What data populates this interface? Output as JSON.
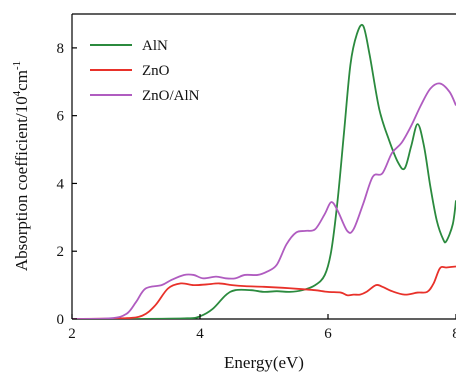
{
  "chart_data": {
    "type": "line",
    "title": "",
    "xlabel": "Energy(eV)",
    "ylabel_parts": [
      "Absorption coefficient/10",
      "4",
      "cm",
      "-1"
    ],
    "xlim": [
      2,
      8
    ],
    "ylim": [
      0,
      9
    ],
    "xticks": [
      2,
      4,
      6,
      8
    ],
    "yticks": [
      0,
      2,
      4,
      6,
      8
    ],
    "grid": false,
    "legend_position": "top-left",
    "series": [
      {
        "name": "AlN",
        "color": "#2b8a3e",
        "points": [
          [
            2.0,
            0
          ],
          [
            3.0,
            0
          ],
          [
            3.8,
            0.02
          ],
          [
            4.0,
            0.08
          ],
          [
            4.2,
            0.3
          ],
          [
            4.4,
            0.7
          ],
          [
            4.55,
            0.85
          ],
          [
            4.8,
            0.85
          ],
          [
            5.0,
            0.8
          ],
          [
            5.2,
            0.82
          ],
          [
            5.4,
            0.8
          ],
          [
            5.6,
            0.85
          ],
          [
            5.8,
            1.0
          ],
          [
            5.95,
            1.3
          ],
          [
            6.05,
            2.0
          ],
          [
            6.15,
            3.5
          ],
          [
            6.25,
            5.5
          ],
          [
            6.35,
            7.5
          ],
          [
            6.45,
            8.4
          ],
          [
            6.55,
            8.65
          ],
          [
            6.65,
            7.8
          ],
          [
            6.8,
            6.2
          ],
          [
            6.95,
            5.3
          ],
          [
            7.1,
            4.6
          ],
          [
            7.2,
            4.45
          ],
          [
            7.3,
            5.1
          ],
          [
            7.4,
            5.75
          ],
          [
            7.5,
            5.1
          ],
          [
            7.6,
            3.9
          ],
          [
            7.7,
            2.9
          ],
          [
            7.8,
            2.35
          ],
          [
            7.85,
            2.3
          ],
          [
            7.95,
            2.8
          ],
          [
            8.0,
            3.5
          ]
        ]
      },
      {
        "name": "ZnO",
        "color": "#e8312a",
        "points": [
          [
            2.0,
            0
          ],
          [
            2.8,
            0.02
          ],
          [
            3.1,
            0.1
          ],
          [
            3.3,
            0.4
          ],
          [
            3.5,
            0.9
          ],
          [
            3.7,
            1.05
          ],
          [
            3.9,
            1.0
          ],
          [
            4.1,
            1.02
          ],
          [
            4.3,
            1.05
          ],
          [
            4.5,
            1.0
          ],
          [
            4.7,
            0.97
          ],
          [
            5.0,
            0.95
          ],
          [
            5.3,
            0.92
          ],
          [
            5.6,
            0.88
          ],
          [
            5.8,
            0.85
          ],
          [
            6.0,
            0.8
          ],
          [
            6.2,
            0.78
          ],
          [
            6.3,
            0.7
          ],
          [
            6.4,
            0.72
          ],
          [
            6.5,
            0.72
          ],
          [
            6.6,
            0.8
          ],
          [
            6.75,
            1.0
          ],
          [
            6.85,
            0.95
          ],
          [
            7.0,
            0.82
          ],
          [
            7.2,
            0.72
          ],
          [
            7.4,
            0.78
          ],
          [
            7.55,
            0.8
          ],
          [
            7.65,
            1.05
          ],
          [
            7.75,
            1.5
          ],
          [
            7.85,
            1.52
          ],
          [
            8.0,
            1.55
          ]
        ]
      },
      {
        "name": "ZnO/AlN",
        "color": "#b05cc0",
        "points": [
          [
            2.0,
            0
          ],
          [
            2.6,
            0.02
          ],
          [
            2.85,
            0.15
          ],
          [
            3.0,
            0.5
          ],
          [
            3.15,
            0.9
          ],
          [
            3.4,
            1.0
          ],
          [
            3.55,
            1.15
          ],
          [
            3.75,
            1.3
          ],
          [
            3.9,
            1.3
          ],
          [
            4.05,
            1.2
          ],
          [
            4.25,
            1.25
          ],
          [
            4.4,
            1.2
          ],
          [
            4.55,
            1.2
          ],
          [
            4.7,
            1.3
          ],
          [
            4.9,
            1.3
          ],
          [
            5.05,
            1.4
          ],
          [
            5.2,
            1.6
          ],
          [
            5.35,
            2.2
          ],
          [
            5.5,
            2.55
          ],
          [
            5.65,
            2.6
          ],
          [
            5.8,
            2.65
          ],
          [
            5.95,
            3.1
          ],
          [
            6.05,
            3.45
          ],
          [
            6.15,
            3.2
          ],
          [
            6.3,
            2.6
          ],
          [
            6.4,
            2.65
          ],
          [
            6.55,
            3.4
          ],
          [
            6.7,
            4.2
          ],
          [
            6.85,
            4.3
          ],
          [
            7.0,
            4.9
          ],
          [
            7.15,
            5.2
          ],
          [
            7.3,
            5.7
          ],
          [
            7.45,
            6.3
          ],
          [
            7.6,
            6.8
          ],
          [
            7.75,
            6.95
          ],
          [
            7.9,
            6.7
          ],
          [
            8.0,
            6.3
          ]
        ]
      }
    ]
  }
}
